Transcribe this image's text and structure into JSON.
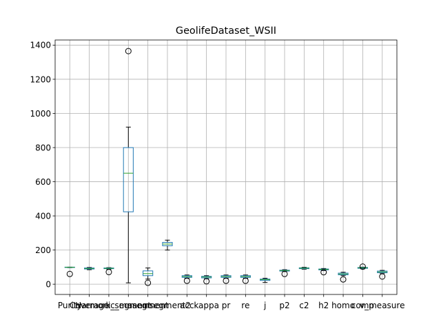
{
  "chart_data": {
    "type": "boxplot",
    "title": "GeolifeDataset_WSII",
    "xlabel": "",
    "ylabel": "",
    "ylim": [
      -60,
      1430
    ],
    "yticks": [
      0,
      200,
      400,
      600,
      800,
      1000,
      1200,
      1400
    ],
    "grid": true,
    "categories": [
      "Purity",
      "Coverage",
      "Harmonic_mean",
      "k_segment",
      "nsegment",
      "nsegment2",
      "acc",
      "kappa",
      "pr",
      "re",
      "j",
      "p2",
      "c2",
      "h2",
      "homo",
      "comp",
      "v_measure"
    ],
    "boxes": [
      {
        "whislo": 97,
        "q1": 98,
        "med": 99,
        "q3": 100,
        "whishi": 100,
        "fliers": [
          60
        ]
      },
      {
        "whislo": 85,
        "q1": 89,
        "med": 92,
        "q3": 95,
        "whishi": 98,
        "fliers": []
      },
      {
        "whislo": 88,
        "q1": 91,
        "med": 93,
        "q3": 95,
        "whishi": 97,
        "fliers": [
          71
        ]
      },
      {
        "whislo": 8,
        "q1": 424,
        "med": 650,
        "q3": 800,
        "whishi": 920,
        "fliers": [
          1365
        ]
      },
      {
        "whislo": 30,
        "q1": 50,
        "med": 62,
        "q3": 78,
        "whishi": 95,
        "fliers": [
          8
        ]
      },
      {
        "whislo": 200,
        "q1": 225,
        "med": 235,
        "q3": 245,
        "whishi": 258,
        "fliers": []
      },
      {
        "whislo": 35,
        "q1": 40,
        "med": 45,
        "q3": 50,
        "whishi": 54,
        "fliers": [
          20
        ]
      },
      {
        "whislo": 32,
        "q1": 37,
        "med": 42,
        "q3": 46,
        "whishi": 50,
        "fliers": [
          17
        ]
      },
      {
        "whislo": 35,
        "q1": 40,
        "med": 45,
        "q3": 50,
        "whishi": 54,
        "fliers": [
          20
        ]
      },
      {
        "whislo": 35,
        "q1": 40,
        "med": 45,
        "q3": 50,
        "whishi": 54,
        "fliers": [
          20
        ]
      },
      {
        "whislo": 10,
        "q1": 22,
        "med": 27,
        "q3": 30,
        "whishi": 35,
        "fliers": []
      },
      {
        "whislo": 74,
        "q1": 77,
        "med": 80,
        "q3": 82,
        "whishi": 85,
        "fliers": [
          60
        ]
      },
      {
        "whislo": 88,
        "q1": 91,
        "med": 94,
        "q3": 96,
        "whishi": 99,
        "fliers": []
      },
      {
        "whislo": 80,
        "q1": 84,
        "med": 87,
        "q3": 89,
        "whishi": 92,
        "fliers": [
          70
        ]
      },
      {
        "whislo": 50,
        "q1": 55,
        "med": 60,
        "q3": 65,
        "whishi": 70,
        "fliers": [
          28
        ]
      },
      {
        "whislo": 90,
        "q1": 93,
        "med": 96,
        "q3": 98,
        "whishi": 100,
        "fliers": [
          103
        ]
      },
      {
        "whislo": 62,
        "q1": 67,
        "med": 72,
        "q3": 77,
        "whishi": 81,
        "fliers": [
          45
        ]
      }
    ],
    "colors": {
      "box": "#1f77b4",
      "median": "#2ca02c",
      "whisker": "#000000",
      "grid": "#b0b0b0"
    }
  }
}
